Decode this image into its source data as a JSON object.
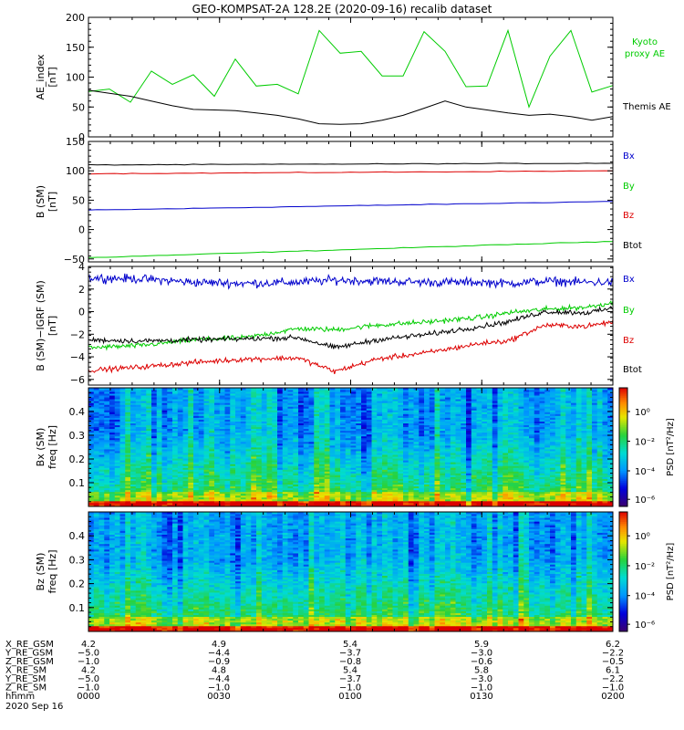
{
  "title": "GEO-KOMPSAT-2A 128.2E (2020-09-16) recalib dataset",
  "colors": {
    "green": "#00cc00",
    "blue": "#0000cc",
    "red": "#dd0000",
    "black": "#000000"
  },
  "chart_data": [
    {
      "type": "line",
      "panel": "ae",
      "ylabel": [
        "AE_index",
        "[nT]"
      ],
      "ylim": [
        0,
        200
      ],
      "yticks": [
        0,
        50,
        100,
        150,
        200
      ],
      "ytick_labels": [
        "0",
        "50",
        "100",
        "150",
        "200"
      ],
      "x": [
        0.0,
        0.04,
        0.08,
        0.12,
        0.16,
        0.2,
        0.24,
        0.28,
        0.32,
        0.36,
        0.4,
        0.44,
        0.48,
        0.52,
        0.56,
        0.6,
        0.64,
        0.68,
        0.72,
        0.76,
        0.8,
        0.84,
        0.88,
        0.92,
        0.96,
        1.0
      ],
      "series": [
        {
          "name": "Kyoto proxy AE",
          "label_lines": [
            "Kyoto",
            "proxy AE"
          ],
          "color": "#00cc00",
          "values": [
            76,
            80,
            58,
            110,
            88,
            104,
            68,
            130,
            85,
            88,
            72,
            178,
            140,
            143,
            102,
            102,
            176,
            143,
            84,
            85,
            178,
            50,
            135,
            178,
            75,
            86
          ]
        },
        {
          "name": "Themis AE",
          "label_lines": [
            "Themis AE"
          ],
          "color": "#000000",
          "values": [
            78,
            73,
            68,
            60,
            52,
            46,
            45,
            44,
            40,
            36,
            30,
            22,
            21,
            22,
            28,
            36,
            48,
            60,
            50,
            45,
            40,
            36,
            38,
            34,
            28,
            34
          ]
        }
      ]
    },
    {
      "type": "line",
      "panel": "bsm",
      "ylabel": [
        "B (SM)",
        "[nT]"
      ],
      "ylim": [
        -55,
        150
      ],
      "yticks": [
        -50,
        0,
        50,
        100,
        150
      ],
      "ytick_labels": [
        "−50",
        "0",
        "50",
        "100",
        "150"
      ],
      "x": [
        0,
        1
      ],
      "series": [
        {
          "name": "Bx",
          "color": "#0000cc",
          "values": [
            33,
            48
          ]
        },
        {
          "name": "By",
          "color": "#00cc00",
          "values": [
            -48,
            -20
          ]
        },
        {
          "name": "Bz",
          "color": "#dd0000",
          "values": [
            95,
            100
          ]
        },
        {
          "name": "Btot",
          "color": "#000000",
          "values": [
            110,
            113
          ]
        }
      ]
    },
    {
      "type": "line",
      "panel": "bsm-igrf",
      "ylabel": [
        "B (SM)−IGRF (SM)",
        "[nT]"
      ],
      "ylim": [
        -6.5,
        4
      ],
      "yticks": [
        -6,
        -4,
        -2,
        0,
        2,
        4
      ],
      "ytick_labels": [
        "−6",
        "−4",
        "−2",
        "0",
        "2",
        "4"
      ],
      "x": [
        0.0,
        0.1,
        0.2,
        0.3,
        0.4,
        0.47,
        0.55,
        0.65,
        0.75,
        0.8,
        0.87,
        0.95,
        1.0
      ],
      "series": [
        {
          "name": "Bx",
          "color": "#0000cc",
          "values": [
            3.0,
            2.9,
            2.6,
            2.5,
            2.6,
            2.8,
            2.7,
            2.6,
            2.6,
            2.5,
            2.7,
            2.6,
            2.6
          ]
        },
        {
          "name": "By",
          "color": "#00cc00",
          "values": [
            -3.2,
            -3.0,
            -2.5,
            -2.3,
            -1.5,
            -1.6,
            -1.2,
            -0.9,
            -0.5,
            -0.1,
            0.2,
            0.4,
            0.8
          ]
        },
        {
          "name": "Bz",
          "color": "#dd0000",
          "values": [
            -5.2,
            -4.9,
            -4.5,
            -4.2,
            -4.1,
            -5.3,
            -4.2,
            -3.6,
            -2.8,
            -2.6,
            -1.2,
            -1.3,
            -0.9
          ]
        },
        {
          "name": "Btot",
          "color": "#000000",
          "values": [
            -2.5,
            -2.6,
            -2.5,
            -2.4,
            -2.3,
            -3.2,
            -2.5,
            -2.0,
            -1.3,
            -0.9,
            0.0,
            -0.1,
            0.3
          ]
        }
      ]
    },
    {
      "type": "heatmap",
      "panel": "bx-spec",
      "ylabel": [
        "Bx (SM)",
        "freq [Hz]"
      ],
      "ylim": [
        0,
        0.5
      ],
      "yticks": [
        0.1,
        0.2,
        0.3,
        0.4
      ],
      "ytick_labels": [
        "0.1",
        "0.2",
        "0.3",
        "0.4"
      ],
      "colorbar_label": "PSD [nT²/Hz]",
      "colorbar_ticks": [
        "10⁰",
        "10⁻²",
        "10⁻⁴",
        "10⁻⁶"
      ]
    },
    {
      "type": "heatmap",
      "panel": "bz-spec",
      "ylabel": [
        "Bz (SM)",
        "freq [Hz]"
      ],
      "ylim": [
        0,
        0.5
      ],
      "yticks": [
        0.1,
        0.2,
        0.3,
        0.4
      ],
      "ytick_labels": [
        "0.1",
        "0.2",
        "0.3",
        "0.4"
      ],
      "colorbar_label": "PSD [nT²/Hz]",
      "colorbar_ticks": [
        "10⁰",
        "10⁻²",
        "10⁻⁴",
        "10⁻⁶"
      ]
    }
  ],
  "ephemeris": {
    "rows": [
      {
        "label": "X_RE_GSM",
        "values": [
          "4.2",
          "4.9",
          "5.4",
          "5.9",
          "6.2"
        ]
      },
      {
        "label": "Y_RE_GSM",
        "values": [
          "−5.0",
          "−4.4",
          "−3.7",
          "−3.0",
          "−2.2"
        ]
      },
      {
        "label": "Z_RE_GSM",
        "values": [
          "−1.0",
          "−0.9",
          "−0.8",
          "−0.6",
          "−0.5"
        ]
      },
      {
        "label": "X_RE_SM",
        "values": [
          "4.2",
          "4.8",
          "5.4",
          "5.8",
          "6.1"
        ]
      },
      {
        "label": "Y_RE_SM",
        "values": [
          "−5.0",
          "−4.4",
          "−3.7",
          "−3.0",
          "−2.2"
        ]
      },
      {
        "label": "Z_RE_SM",
        "values": [
          "−1.0",
          "−1.0",
          "−1.0",
          "−1.0",
          "−1.0"
        ]
      },
      {
        "label": "hhmm",
        "values": [
          "0000",
          "0030",
          "0100",
          "0130",
          "0200"
        ]
      }
    ],
    "date": "2020 Sep 16"
  }
}
